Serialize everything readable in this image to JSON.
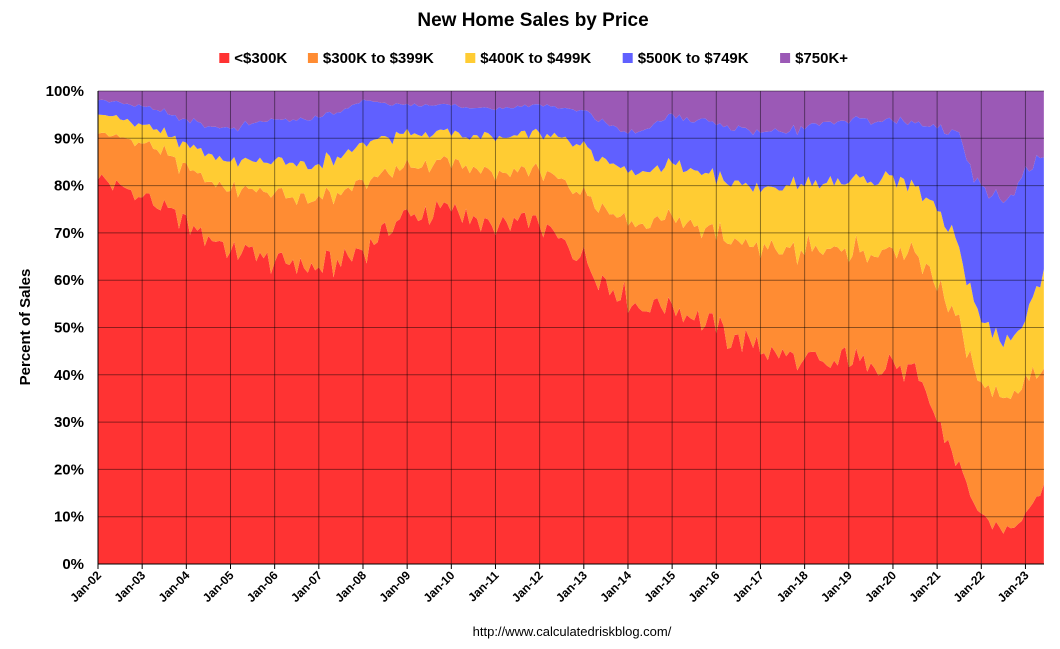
{
  "chart_data": {
    "type": "area",
    "stacked": "percent",
    "title": "New Home Sales by Price",
    "ylabel": "Percent of Sales",
    "xlabel": "",
    "source": "http://www.calculatedriskblog.com/",
    "ylim": [
      0,
      100
    ],
    "yticks": [
      "0%",
      "10%",
      "20%",
      "30%",
      "40%",
      "50%",
      "60%",
      "70%",
      "80%",
      "90%",
      "100%"
    ],
    "x_start": "Jan-02",
    "x_end": "May-23",
    "x_ticks": [
      "Jan-02",
      "Jan-03",
      "Jan-04",
      "Jan-05",
      "Jan-06",
      "Jan-07",
      "Jan-08",
      "Jan-09",
      "Jan-10",
      "Jan-11",
      "Jan-12",
      "Jan-13",
      "Jan-14",
      "Jan-15",
      "Jan-16",
      "Jan-17",
      "Jan-18",
      "Jan-19",
      "Jan-20",
      "Jan-21",
      "Jan-22",
      "Jan-23"
    ],
    "legend_position": "top",
    "series": [
      {
        "name": "<$300K",
        "color": "#ff3333",
        "x": [
          2002.0,
          2002.5,
          2003.0,
          2003.5,
          2004.0,
          2004.5,
          2005.0,
          2005.5,
          2006.0,
          2006.5,
          2007.0,
          2007.5,
          2008.0,
          2008.5,
          2009.0,
          2009.5,
          2010.0,
          2010.5,
          2011.0,
          2011.5,
          2012.0,
          2012.5,
          2013.0,
          2013.5,
          2014.0,
          2014.5,
          2015.0,
          2015.5,
          2016.0,
          2016.5,
          2017.0,
          2017.5,
          2018.0,
          2018.5,
          2019.0,
          2019.5,
          2020.0,
          2020.5,
          2021.0,
          2021.25,
          2021.5,
          2021.75,
          2022.0,
          2022.25,
          2022.5,
          2022.75,
          2023.0,
          2023.42
        ],
        "values": [
          81,
          82,
          78,
          76,
          72,
          70,
          68,
          66,
          64,
          63,
          63,
          64,
          67,
          70,
          74,
          74,
          75,
          74,
          71,
          73,
          72,
          66,
          62,
          58,
          56,
          54,
          54,
          52,
          50,
          48,
          47,
          45,
          42,
          42,
          44,
          43,
          42,
          40,
          31,
          26,
          20,
          14,
          10,
          8,
          7,
          8,
          11,
          17
        ]
      },
      {
        "name": "$300K to $399K",
        "color": "#ff8c33",
        "x": [
          2002.0,
          2003.0,
          2004.0,
          2005.0,
          2006.0,
          2007.0,
          2008.0,
          2009.0,
          2010.0,
          2011.0,
          2012.0,
          2013.0,
          2014.0,
          2015.0,
          2016.0,
          2017.0,
          2018.0,
          2019.0,
          2020.0,
          2020.5,
          2021.0,
          2021.5,
          2022.0,
          2022.5,
          2023.0,
          2023.42
        ],
        "values": [
          10,
          11,
          12,
          13,
          14,
          14,
          14,
          10,
          10,
          11,
          11,
          14,
          17,
          18,
          20,
          21,
          24,
          23,
          24,
          25,
          28,
          29,
          27,
          28,
          28,
          26
        ]
      },
      {
        "name": "$400K to $499K",
        "color": "#ffcc33",
        "x": [
          2002.0,
          2003.0,
          2004.0,
          2005.0,
          2006.0,
          2007.0,
          2008.0,
          2009.0,
          2010.0,
          2011.0,
          2012.0,
          2013.0,
          2014.0,
          2015.0,
          2016.0,
          2017.0,
          2018.0,
          2019.0,
          2020.0,
          2020.5,
          2021.0,
          2021.5,
          2022.0,
          2022.5,
          2023.0,
          2023.42
        ],
        "values": [
          4,
          4,
          5,
          6,
          7,
          7,
          8,
          7,
          6,
          8,
          8,
          9,
          10,
          11,
          12,
          13,
          14,
          15,
          16,
          14,
          16,
          15,
          14,
          12,
          13,
          21
        ]
      },
      {
        "name": "$500K to $749K",
        "color": "#6060ff",
        "x": [
          2002.0,
          2003.0,
          2004.0,
          2005.0,
          2006.0,
          2007.0,
          2008.0,
          2009.0,
          2010.0,
          2011.0,
          2012.0,
          2013.0,
          2014.0,
          2015.0,
          2016.0,
          2017.0,
          2018.0,
          2019.0,
          2020.0,
          2020.5,
          2021.0,
          2021.5,
          2022.0,
          2022.5,
          2023.0,
          2023.42
        ],
        "values": [
          3,
          4,
          5,
          7,
          9,
          10,
          9,
          6,
          6,
          6,
          6,
          7,
          8,
          10,
          11,
          12,
          12,
          13,
          12,
          14,
          17,
          22,
          28,
          30,
          31,
          23
        ]
      },
      {
        "name": "$750K+",
        "color": "#9b59b6",
        "x": [
          2002.0,
          2003.0,
          2004.0,
          2005.0,
          2006.0,
          2007.0,
          2008.0,
          2009.0,
          2010.0,
          2011.0,
          2012.0,
          2013.0,
          2014.0,
          2015.0,
          2016.0,
          2017.0,
          2018.0,
          2019.0,
          2020.0,
          2020.5,
          2021.0,
          2021.5,
          2022.0,
          2022.5,
          2023.0,
          2023.42
        ],
        "values": [
          2,
          3,
          6,
          8,
          6,
          6,
          2,
          3,
          3,
          4,
          3,
          4,
          9,
          5,
          7,
          9,
          8,
          6,
          6,
          7,
          8,
          9,
          21,
          22,
          17,
          13
        ]
      }
    ]
  }
}
